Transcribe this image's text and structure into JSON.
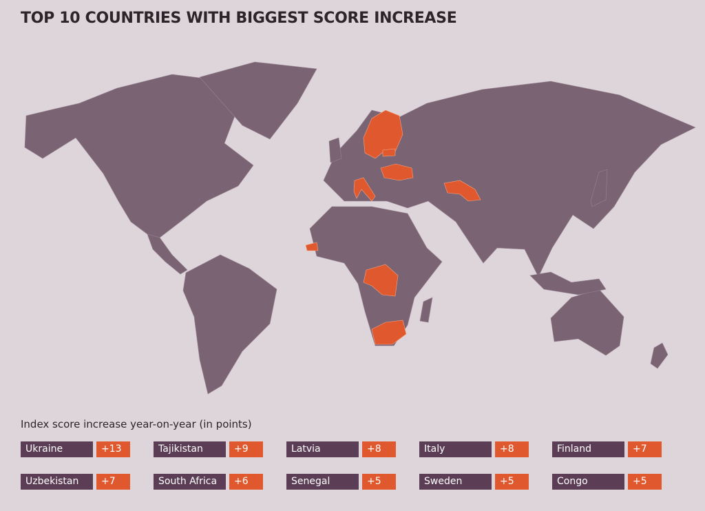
{
  "header": {
    "title": "TOP 10 COUNTRIES WITH BIGGEST SCORE INCREASE"
  },
  "legend": {
    "title": "Index score increase year-on-year (in points)",
    "items": [
      {
        "name": "Ukraine",
        "increase": "+13"
      },
      {
        "name": "Tajikistan",
        "increase": "+9"
      },
      {
        "name": "Latvia",
        "increase": "+8"
      },
      {
        "name": "Italy",
        "increase": "+8"
      },
      {
        "name": "Finland",
        "increase": "+7"
      },
      {
        "name": "Uzbekistan",
        "increase": "+7"
      },
      {
        "name": "South Africa",
        "increase": "+6"
      },
      {
        "name": "Senegal",
        "increase": "+5"
      },
      {
        "name": "Sweden",
        "increase": "+5"
      },
      {
        "name": "Congo",
        "increase": "+5"
      }
    ]
  }
}
